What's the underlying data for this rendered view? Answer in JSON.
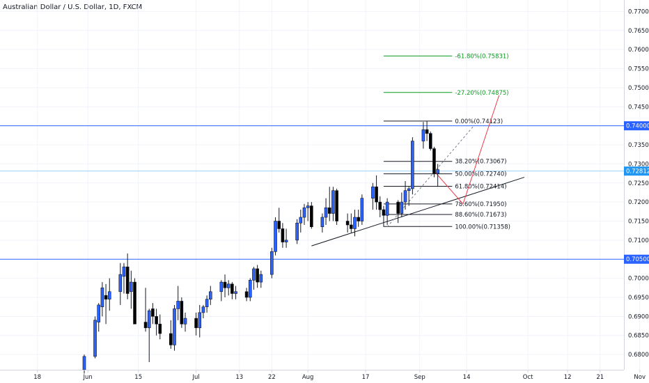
{
  "chart_data": {
    "type": "candlestick",
    "title": "Australian Dollar / U.S. Dollar, 1D, FXCM",
    "x_ticks": [
      {
        "label": "18",
        "day": -13
      },
      {
        "label": "Jun",
        "day": 1
      },
      {
        "label": "15",
        "day": 15
      },
      {
        "label": "Jul",
        "day": 31
      },
      {
        "label": "13",
        "day": 43
      },
      {
        "label": "22",
        "day": 52
      },
      {
        "label": "Aug",
        "day": 62
      },
      {
        "label": "17",
        "day": 78
      },
      {
        "label": "Sep",
        "day": 93
      },
      {
        "label": "14",
        "day": 106
      },
      {
        "label": "Oct",
        "day": 123
      },
      {
        "label": "12",
        "day": 134
      },
      {
        "label": "21",
        "day": 143
      },
      {
        "label": "Nov",
        "day": 154
      }
    ],
    "y_ticks": [
      "0.77000",
      "0.76500",
      "0.76000",
      "0.75500",
      "0.75000",
      "0.74500",
      "0.73500",
      "0.73000",
      "0.72500",
      "0.72000",
      "0.71500",
      "0.71000",
      "0.70000",
      "0.69500",
      "0.69000",
      "0.68500",
      "0.68000"
    ],
    "ylim": [
      0.676,
      0.773
    ],
    "date_range": [
      "2020-05-29",
      "2020-09-04"
    ],
    "horizontal_levels": [
      {
        "value": 0.74,
        "label": "0.74000",
        "color": "#2962ff"
      },
      {
        "value": 0.705,
        "label": "0.70500",
        "color": "#2962ff"
      }
    ],
    "current_price": {
      "value": 0.72812,
      "label": "0.72812",
      "color": "#2196f3"
    },
    "fibonacci": [
      {
        "label": "-61.80%(0.75831)",
        "value": 0.75831,
        "color": "#089a1d"
      },
      {
        "label": "-27.20%(0.74875)",
        "value": 0.74875,
        "color": "#089a1d"
      },
      {
        "label": "0.00%(0.74123)",
        "value": 0.74123,
        "color": "#131722"
      },
      {
        "label": "38.20%(0.73067)",
        "value": 0.73067,
        "color": "#131722"
      },
      {
        "label": "50.00%(0.72740)",
        "value": 0.7274,
        "color": "#131722"
      },
      {
        "label": "61.80%(0.72414)",
        "value": 0.72414,
        "color": "#131722"
      },
      {
        "label": "78.60%(0.71950)",
        "value": 0.7195,
        "color": "#131722"
      },
      {
        "label": "88.60%(0.71673)",
        "value": 0.71673,
        "color": "#131722"
      },
      {
        "label": "100.00%(0.71358)",
        "value": 0.71358,
        "color": "#131722"
      }
    ],
    "candles": [
      [
        0.676,
        0.68,
        0.675,
        0.6795
      ],
      [
        0.6795,
        0.69,
        0.679,
        0.689
      ],
      [
        0.6885,
        0.6935,
        0.686,
        0.693
      ],
      [
        0.6925,
        0.699,
        0.69,
        0.6975
      ],
      [
        0.6955,
        0.6985,
        0.688,
        0.6945
      ],
      [
        0.6945,
        0.7,
        0.6915,
        0.6965
      ],
      [
        0.6965,
        0.704,
        0.693,
        0.701
      ],
      [
        0.7005,
        0.704,
        0.696,
        0.703
      ],
      [
        0.703,
        0.7065,
        0.6945,
        0.696
      ],
      [
        0.6965,
        0.702,
        0.692,
        0.699
      ],
      [
        0.699,
        0.7,
        0.688,
        0.688
      ],
      [
        0.6885,
        0.6975,
        0.686,
        0.687
      ],
      [
        0.687,
        0.692,
        0.678,
        0.6915
      ],
      [
        0.692,
        0.6935,
        0.688,
        0.69
      ],
      [
        0.69,
        0.692,
        0.685,
        0.688
      ],
      [
        0.688,
        0.6905,
        0.684,
        0.6855
      ],
      [
        0.6855,
        0.689,
        0.6815,
        0.6825
      ],
      [
        0.6825,
        0.693,
        0.681,
        0.692
      ],
      [
        0.692,
        0.698,
        0.689,
        0.694
      ],
      [
        0.694,
        0.695,
        0.687,
        0.688
      ],
      [
        0.688,
        0.691,
        0.686,
        0.6895
      ],
      [
        0.6895,
        0.691,
        0.685,
        0.687
      ],
      [
        0.687,
        0.693,
        0.6845,
        0.691
      ],
      [
        0.691,
        0.693,
        0.6895,
        0.6925
      ],
      [
        0.6925,
        0.6955,
        0.691,
        0.6945
      ],
      [
        0.6945,
        0.698,
        0.693,
        0.6965
      ],
      [
        0.6965,
        0.6995,
        0.694,
        0.699
      ],
      [
        0.699,
        0.701,
        0.695,
        0.6975
      ],
      [
        0.6975,
        0.6995,
        0.6955,
        0.6985
      ],
      [
        0.6985,
        0.699,
        0.6945,
        0.696
      ],
      [
        0.696,
        0.698,
        0.6945,
        0.6965
      ],
      [
        0.6965,
        0.6975,
        0.694,
        0.695
      ],
      [
        0.695,
        0.7,
        0.694,
        0.6995
      ],
      [
        0.6995,
        0.703,
        0.697,
        0.7025
      ],
      [
        0.7025,
        0.7035,
        0.6975,
        0.699
      ],
      [
        0.699,
        0.702,
        0.6975,
        0.701
      ],
      [
        0.701,
        0.708,
        0.7,
        0.707
      ],
      [
        0.707,
        0.716,
        0.706,
        0.715
      ],
      [
        0.715,
        0.7185,
        0.712,
        0.713
      ],
      [
        0.713,
        0.7145,
        0.708,
        0.7095
      ],
      [
        0.7095,
        0.713,
        0.708,
        0.71
      ],
      [
        0.71,
        0.7155,
        0.709,
        0.7145
      ],
      [
        0.7145,
        0.718,
        0.712,
        0.716
      ],
      [
        0.716,
        0.7195,
        0.714,
        0.7185
      ],
      [
        0.7185,
        0.72,
        0.715,
        0.719
      ],
      [
        0.719,
        0.72,
        0.713,
        0.7135
      ],
      [
        0.7135,
        0.717,
        0.712,
        0.716
      ],
      [
        0.716,
        0.721,
        0.714,
        0.7185
      ],
      [
        0.7185,
        0.724,
        0.715,
        0.717
      ],
      [
        0.717,
        0.724,
        0.715,
        0.723
      ],
      [
        0.723,
        0.7235,
        0.714,
        0.715
      ],
      [
        0.715,
        0.717,
        0.712,
        0.714
      ],
      [
        0.714,
        0.717,
        0.712,
        0.713
      ],
      [
        0.713,
        0.718,
        0.711,
        0.716
      ],
      [
        0.716,
        0.718,
        0.7135,
        0.715
      ],
      [
        0.715,
        0.722,
        0.714,
        0.721
      ],
      [
        0.721,
        0.725,
        0.718,
        0.724
      ],
      [
        0.724,
        0.727,
        0.718,
        0.72
      ],
      [
        0.72,
        0.7215,
        0.716,
        0.718
      ],
      [
        0.718,
        0.719,
        0.7135,
        0.7165
      ],
      [
        0.7165,
        0.721,
        0.714,
        0.72
      ],
      [
        0.72,
        0.7205,
        0.7145,
        0.717
      ],
      [
        0.717,
        0.7225,
        0.716,
        0.72
      ],
      [
        0.72,
        0.7255,
        0.718,
        0.723
      ],
      [
        0.723,
        0.724,
        0.719,
        0.7235
      ],
      [
        0.7235,
        0.737,
        0.722,
        0.736
      ],
      [
        0.736,
        0.741,
        0.734,
        0.739
      ],
      [
        0.739,
        0.7412,
        0.736,
        0.738
      ],
      [
        0.738,
        0.7385,
        0.7335,
        0.734
      ],
      [
        0.734,
        0.7345,
        0.7265,
        0.7275
      ],
      [
        0.7275,
        0.73,
        0.724,
        0.7285
      ]
    ],
    "trendline": {
      "p1": {
        "date": "2020-07-31",
        "value": 0.7085
      },
      "p2": {
        "date": "2020-09-28",
        "value": 0.7265
      }
    },
    "dashed_projection": {
      "p1": {
        "date": "2020-08-21",
        "value": 0.7135
      },
      "p2": {
        "date": "2020-09-14",
        "value": 0.74
      }
    },
    "red_projection": [
      {
        "date": "2020-09-03",
        "value": 0.72812
      },
      {
        "date": "2020-09-11",
        "value": 0.7195
      },
      {
        "date": "2020-09-21",
        "value": 0.748
      }
    ],
    "up_color": "#2962ff",
    "down_color": "#000000"
  }
}
